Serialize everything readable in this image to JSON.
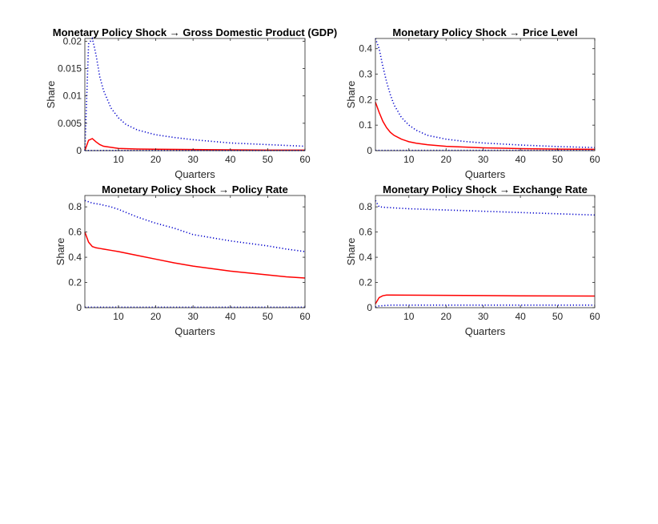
{
  "figure": {
    "background": "#ffffff"
  },
  "chart_data": [
    {
      "type": "line",
      "title": "Monetary Policy Shock → Gross Domestic Product (GDP)",
      "xlabel": "Quarters",
      "ylabel": "Share",
      "xlim": [
        1,
        60
      ],
      "ylim": [
        0,
        0.0205
      ],
      "xticks": [
        10,
        20,
        30,
        40,
        50,
        60
      ],
      "yticks": [
        0,
        0.005,
        0.01,
        0.015,
        0.02
      ],
      "ytick_labels": [
        "0",
        "0.005",
        "0.01",
        "0.015",
        "0.02"
      ],
      "grid": false,
      "series": [
        {
          "role": "median",
          "color": "#ff0000",
          "style": "solid",
          "x": [
            1,
            2,
            3,
            4,
            5,
            6,
            8,
            10,
            15,
            20,
            30,
            40,
            50,
            60
          ],
          "y": [
            0.0,
            0.0019,
            0.0022,
            0.0016,
            0.0011,
            0.0008,
            0.0006,
            0.0004,
            0.0003,
            0.00025,
            0.0002,
            0.00015,
            0.0001,
            0.0001
          ]
        },
        {
          "role": "upper",
          "color": "#0000cc",
          "style": "dotted",
          "x": [
            1,
            2,
            3,
            4,
            5,
            6,
            8,
            10,
            12,
            15,
            20,
            25,
            30,
            40,
            50,
            60
          ],
          "y": [
            0.0,
            0.0195,
            0.0205,
            0.0175,
            0.0135,
            0.011,
            0.0078,
            0.006,
            0.0048,
            0.0038,
            0.0029,
            0.0024,
            0.002,
            0.0014,
            0.0011,
            0.0008
          ]
        },
        {
          "role": "lower",
          "color": "#0000cc",
          "style": "dotted",
          "x": [
            1,
            60
          ],
          "y": [
            2e-05,
            2e-05
          ]
        }
      ]
    },
    {
      "type": "line",
      "title": "Monetary Policy Shock → Price Level",
      "xlabel": "Quarters",
      "ylabel": "Share",
      "xlim": [
        1,
        60
      ],
      "ylim": [
        0,
        0.44
      ],
      "xticks": [
        10,
        20,
        30,
        40,
        50,
        60
      ],
      "yticks": [
        0,
        0.1,
        0.2,
        0.3,
        0.4
      ],
      "ytick_labels": [
        "0",
        "0.1",
        "0.2",
        "0.3",
        "0.4"
      ],
      "grid": false,
      "series": [
        {
          "role": "median",
          "color": "#ff0000",
          "style": "solid",
          "x": [
            1,
            2,
            3,
            4,
            5,
            6,
            8,
            10,
            12,
            15,
            20,
            30,
            40,
            50,
            60
          ],
          "y": [
            0.19,
            0.15,
            0.115,
            0.09,
            0.072,
            0.06,
            0.045,
            0.035,
            0.029,
            0.023,
            0.017,
            0.011,
            0.008,
            0.006,
            0.005
          ]
        },
        {
          "role": "upper",
          "color": "#0000cc",
          "style": "dotted",
          "x": [
            1,
            2,
            3,
            4,
            5,
            6,
            8,
            10,
            12,
            15,
            20,
            25,
            30,
            40,
            50,
            60
          ],
          "y": [
            0.44,
            0.4,
            0.33,
            0.27,
            0.22,
            0.18,
            0.13,
            0.1,
            0.08,
            0.06,
            0.045,
            0.036,
            0.03,
            0.022,
            0.016,
            0.012
          ]
        },
        {
          "role": "lower",
          "color": "#0000cc",
          "style": "dotted",
          "x": [
            1,
            60
          ],
          "y": [
            0.001,
            0.001
          ]
        }
      ]
    },
    {
      "type": "line",
      "title": "Monetary Policy Shock → Policy Rate",
      "xlabel": "Quarters",
      "ylabel": "Share",
      "xlim": [
        1,
        60
      ],
      "ylim": [
        0,
        0.89
      ],
      "xticks": [
        10,
        20,
        30,
        40,
        50,
        60
      ],
      "yticks": [
        0,
        0.2,
        0.4,
        0.6,
        0.8
      ],
      "ytick_labels": [
        "0",
        "0.2",
        "0.4",
        "0.6",
        "0.8"
      ],
      "grid": false,
      "series": [
        {
          "role": "median",
          "color": "#ff0000",
          "style": "solid",
          "x": [
            1,
            2,
            3,
            4,
            5,
            6,
            8,
            10,
            15,
            20,
            25,
            30,
            35,
            40,
            45,
            50,
            55,
            60
          ],
          "y": [
            0.6,
            0.52,
            0.485,
            0.475,
            0.47,
            0.465,
            0.455,
            0.445,
            0.415,
            0.385,
            0.355,
            0.33,
            0.31,
            0.29,
            0.275,
            0.26,
            0.245,
            0.235
          ]
        },
        {
          "role": "upper",
          "color": "#0000cc",
          "style": "dotted",
          "x": [
            1,
            3,
            5,
            8,
            10,
            15,
            20,
            25,
            30,
            35,
            40,
            45,
            50,
            55,
            60
          ],
          "y": [
            0.85,
            0.83,
            0.82,
            0.8,
            0.78,
            0.72,
            0.67,
            0.63,
            0.58,
            0.555,
            0.53,
            0.51,
            0.49,
            0.465,
            0.445
          ]
        },
        {
          "role": "lower",
          "color": "#0000cc",
          "style": "dotted",
          "x": [
            1,
            60
          ],
          "y": [
            0.004,
            0.004
          ]
        }
      ]
    },
    {
      "type": "line",
      "title": "Monetary Policy Shock → Exchange Rate",
      "xlabel": "Quarters",
      "ylabel": "Share",
      "xlim": [
        1,
        60
      ],
      "ylim": [
        0,
        0.89
      ],
      "xticks": [
        10,
        20,
        30,
        40,
        50,
        60
      ],
      "yticks": [
        0,
        0.2,
        0.4,
        0.6,
        0.8
      ],
      "ytick_labels": [
        "0",
        "0.2",
        "0.4",
        "0.6",
        "0.8"
      ],
      "grid": false,
      "series": [
        {
          "role": "median",
          "color": "#ff0000",
          "style": "solid",
          "x": [
            1,
            2,
            3,
            4,
            5,
            10,
            20,
            30,
            40,
            50,
            60
          ],
          "y": [
            0.03,
            0.08,
            0.095,
            0.1,
            0.1,
            0.099,
            0.098,
            0.096,
            0.094,
            0.093,
            0.092
          ]
        },
        {
          "role": "upper",
          "color": "#0000cc",
          "style": "dotted",
          "x": [
            1,
            2,
            4,
            10,
            20,
            30,
            40,
            50,
            60
          ],
          "y": [
            0.85,
            0.8,
            0.795,
            0.785,
            0.775,
            0.765,
            0.755,
            0.745,
            0.735
          ]
        },
        {
          "role": "lower",
          "color": "#0000cc",
          "style": "dotted",
          "x": [
            1,
            2,
            5,
            10,
            20,
            30,
            40,
            50,
            60
          ],
          "y": [
            0.005,
            0.014,
            0.02,
            0.02,
            0.02,
            0.02,
            0.02,
            0.02,
            0.02
          ]
        }
      ]
    }
  ]
}
